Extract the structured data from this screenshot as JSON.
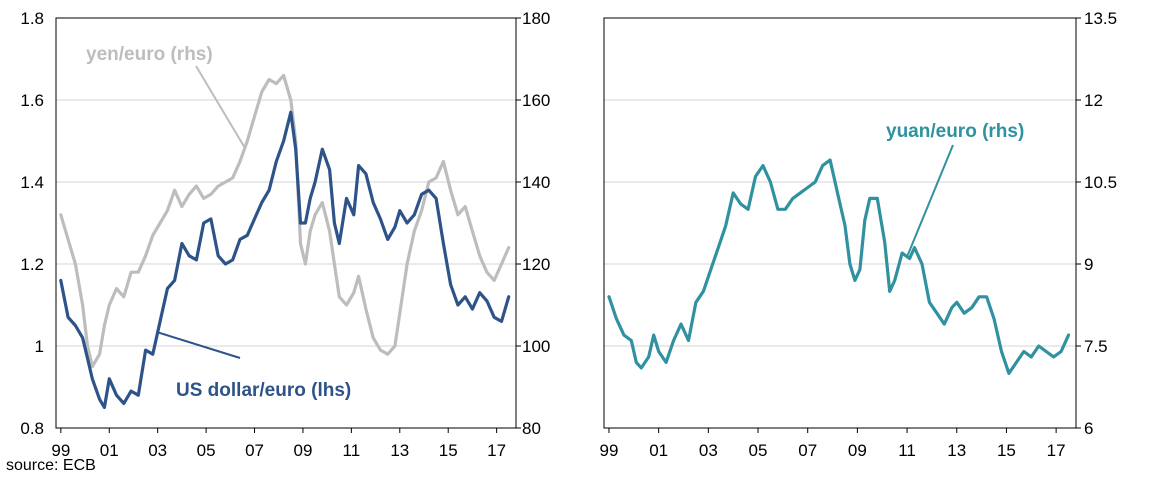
{
  "source_note": "source: ECB",
  "colors": {
    "usd": "#2e5389",
    "yen": "#bdbdbd",
    "yuan": "#30919f",
    "grid": "#d4d4d4",
    "axis": "#000000"
  },
  "chart_data": [
    {
      "type": "line",
      "x_tick_labels": [
        "99",
        "01",
        "03",
        "05",
        "07",
        "09",
        "11",
        "13",
        "15",
        "17"
      ],
      "x_tick_years": [
        1999,
        2001,
        2003,
        2005,
        2007,
        2009,
        2011,
        2013,
        2015,
        2017
      ],
      "xlim": [
        1998.8,
        2017.8
      ],
      "left_axis": {
        "ylim": [
          0.8,
          1.8
        ],
        "ticks": [
          0.8,
          1,
          1.2,
          1.4,
          1.6,
          1.8
        ],
        "tick_labels": [
          "0.8",
          "1",
          "1.2",
          "1.4",
          "1.6",
          "1.8"
        ]
      },
      "right_axis": {
        "ylim": [
          80,
          180
        ],
        "ticks": [
          80,
          100,
          120,
          140,
          160,
          180
        ],
        "tick_labels": [
          "80",
          "100",
          "120",
          "140",
          "160",
          "180"
        ]
      },
      "grid": true,
      "series": [
        {
          "name": "yen/euro (rhs)",
          "axis": "right",
          "color_key": "yen",
          "x": [
            1999.0,
            1999.3,
            1999.6,
            1999.9,
            2000.1,
            2000.3,
            2000.6,
            2000.8,
            2001.0,
            2001.3,
            2001.6,
            2001.9,
            2002.2,
            2002.5,
            2002.8,
            2003.1,
            2003.4,
            2003.7,
            2004.0,
            2004.3,
            2004.6,
            2004.9,
            2005.2,
            2005.5,
            2005.8,
            2006.1,
            2006.4,
            2006.7,
            2007.0,
            2007.3,
            2007.6,
            2007.9,
            2008.2,
            2008.5,
            2008.7,
            2008.9,
            2009.1,
            2009.3,
            2009.5,
            2009.8,
            2010.1,
            2010.3,
            2010.5,
            2010.8,
            2011.1,
            2011.3,
            2011.6,
            2011.9,
            2012.2,
            2012.5,
            2012.8,
            2013.0,
            2013.3,
            2013.6,
            2013.9,
            2014.2,
            2014.5,
            2014.8,
            2015.1,
            2015.4,
            2015.7,
            2016.0,
            2016.3,
            2016.6,
            2016.9,
            2017.2,
            2017.5
          ],
          "y": [
            132,
            126,
            120,
            110,
            100,
            95,
            98,
            105,
            110,
            114,
            112,
            118,
            118,
            122,
            127,
            130,
            133,
            138,
            134,
            137,
            139,
            136,
            137,
            139,
            140,
            141,
            145,
            150,
            156,
            162,
            165,
            164,
            166,
            160,
            150,
            125,
            120,
            128,
            132,
            135,
            128,
            120,
            112,
            110,
            113,
            117,
            109,
            102,
            99,
            98,
            100,
            108,
            120,
            128,
            133,
            140,
            141,
            145,
            138,
            132,
            134,
            128,
            122,
            118,
            116,
            120,
            124
          ]
        },
        {
          "name": "US dollar/euro (lhs)",
          "axis": "left",
          "color_key": "usd",
          "x": [
            1999.0,
            1999.3,
            1999.6,
            1999.9,
            2000.1,
            2000.3,
            2000.6,
            2000.8,
            2001.0,
            2001.3,
            2001.6,
            2001.9,
            2002.2,
            2002.5,
            2002.8,
            2003.1,
            2003.4,
            2003.7,
            2004.0,
            2004.3,
            2004.6,
            2004.9,
            2005.2,
            2005.5,
            2005.8,
            2006.1,
            2006.4,
            2006.7,
            2007.0,
            2007.3,
            2007.6,
            2007.9,
            2008.2,
            2008.5,
            2008.7,
            2008.9,
            2009.1,
            2009.3,
            2009.5,
            2009.8,
            2010.1,
            2010.3,
            2010.5,
            2010.8,
            2011.1,
            2011.3,
            2011.6,
            2011.9,
            2012.2,
            2012.5,
            2012.8,
            2013.0,
            2013.3,
            2013.6,
            2013.9,
            2014.2,
            2014.5,
            2014.8,
            2015.1,
            2015.4,
            2015.7,
            2016.0,
            2016.3,
            2016.6,
            2016.9,
            2017.2,
            2017.5
          ],
          "y": [
            1.16,
            1.07,
            1.05,
            1.02,
            0.97,
            0.92,
            0.87,
            0.85,
            0.92,
            0.88,
            0.86,
            0.89,
            0.88,
            0.99,
            0.98,
            1.06,
            1.14,
            1.16,
            1.25,
            1.22,
            1.21,
            1.3,
            1.31,
            1.22,
            1.2,
            1.21,
            1.26,
            1.27,
            1.31,
            1.35,
            1.38,
            1.45,
            1.5,
            1.57,
            1.48,
            1.3,
            1.3,
            1.36,
            1.4,
            1.48,
            1.43,
            1.3,
            1.25,
            1.36,
            1.32,
            1.44,
            1.42,
            1.35,
            1.31,
            1.26,
            1.29,
            1.33,
            1.3,
            1.32,
            1.37,
            1.38,
            1.36,
            1.25,
            1.15,
            1.1,
            1.12,
            1.09,
            1.13,
            1.11,
            1.07,
            1.06,
            1.12
          ]
        }
      ],
      "annotations": [
        {
          "text": "yen/euro (rhs)",
          "color_key": "yen",
          "target_series": "yen/euro (rhs)",
          "target_x": 2006.6
        },
        {
          "text": "US dollar/euro (lhs)",
          "color_key": "usd",
          "target_series": "US dollar/euro (lhs)",
          "target_x": 2003.0
        }
      ]
    },
    {
      "type": "line",
      "x_tick_labels": [
        "99",
        "01",
        "03",
        "05",
        "07",
        "09",
        "11",
        "13",
        "15",
        "17"
      ],
      "x_tick_years": [
        1999,
        2001,
        2003,
        2005,
        2007,
        2009,
        2011,
        2013,
        2015,
        2017
      ],
      "xlim": [
        1998.8,
        2017.8
      ],
      "right_axis": {
        "ylim": [
          6,
          13.5
        ],
        "ticks": [
          6,
          7.5,
          9,
          10.5,
          12,
          13.5
        ],
        "tick_labels": [
          "6",
          "7.5",
          "9",
          "10.5",
          "12",
          "13.5"
        ]
      },
      "grid": true,
      "series": [
        {
          "name": "yuan/euro (rhs)",
          "axis": "right",
          "color_key": "yuan",
          "x": [
            1999.0,
            1999.3,
            1999.6,
            1999.9,
            2000.1,
            2000.3,
            2000.6,
            2000.8,
            2001.0,
            2001.3,
            2001.6,
            2001.9,
            2002.2,
            2002.5,
            2002.8,
            2003.1,
            2003.4,
            2003.7,
            2004.0,
            2004.3,
            2004.6,
            2004.9,
            2005.2,
            2005.5,
            2005.8,
            2006.1,
            2006.4,
            2006.7,
            2007.0,
            2007.3,
            2007.6,
            2007.9,
            2008.2,
            2008.5,
            2008.7,
            2008.9,
            2009.1,
            2009.3,
            2009.5,
            2009.8,
            2010.1,
            2010.3,
            2010.5,
            2010.8,
            2011.1,
            2011.3,
            2011.6,
            2011.9,
            2012.2,
            2012.5,
            2012.8,
            2013.0,
            2013.3,
            2013.6,
            2013.9,
            2014.2,
            2014.5,
            2014.8,
            2015.1,
            2015.4,
            2015.7,
            2016.0,
            2016.3,
            2016.6,
            2016.9,
            2017.2,
            2017.5
          ],
          "y": [
            8.4,
            8.0,
            7.7,
            7.6,
            7.2,
            7.1,
            7.3,
            7.7,
            7.4,
            7.2,
            7.6,
            7.9,
            7.6,
            8.3,
            8.5,
            8.9,
            9.3,
            9.7,
            10.3,
            10.1,
            10.0,
            10.6,
            10.8,
            10.5,
            10.0,
            10.0,
            10.2,
            10.3,
            10.4,
            10.5,
            10.8,
            10.9,
            10.3,
            9.7,
            9.0,
            8.7,
            8.9,
            9.8,
            10.2,
            10.2,
            9.4,
            8.5,
            8.7,
            9.2,
            9.1,
            9.3,
            9.0,
            8.3,
            8.1,
            7.9,
            8.2,
            8.3,
            8.1,
            8.2,
            8.4,
            8.4,
            8.0,
            7.4,
            7.0,
            7.2,
            7.4,
            7.3,
            7.5,
            7.4,
            7.3,
            7.4,
            7.7
          ]
        }
      ],
      "annotations": [
        {
          "text": "yuan/euro (rhs)",
          "color_key": "yuan",
          "target_series": "yuan/euro (rhs)",
          "target_x": 2011.0
        }
      ]
    }
  ]
}
